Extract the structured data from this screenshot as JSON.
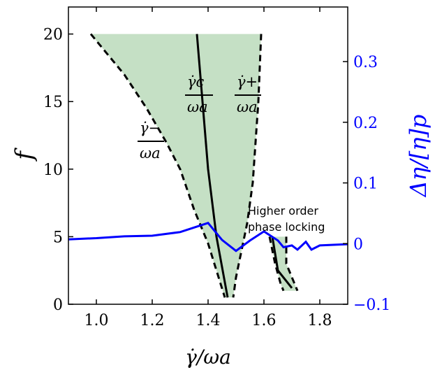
{
  "chart_data": {
    "type": "line",
    "xlabel": "γ̇/ωa",
    "ylabel": "f",
    "y2label": "Δη/[η]p",
    "xlim": [
      0.9,
      1.9
    ],
    "ylim": [
      0,
      22
    ],
    "y2lim": [
      -0.1,
      0.39
    ],
    "x_ticks": [
      1.0,
      1.2,
      1.4,
      1.6,
      1.8
    ],
    "x_tick_labels": [
      "1.0",
      "1.2",
      "1.4",
      "1.6",
      "1.8"
    ],
    "y_ticks": [
      0,
      5,
      10,
      15,
      20
    ],
    "y_tick_labels": [
      "0",
      "5",
      "10",
      "15",
      "20"
    ],
    "y2_ticks": [
      -0.1,
      0.0,
      0.1,
      0.2,
      0.3
    ],
    "y2_tick_labels": [
      "−0.1",
      "0",
      "0.1",
      "0.2",
      "0.3"
    ],
    "grid": false,
    "colors": {
      "shade": "#c5e0c5",
      "boundary": "#000000",
      "center": "#000000",
      "delta_eta": "#0000ff",
      "right_axis": "#0000ff"
    },
    "regions": [
      {
        "lower_boundary": [
          [
            0.98,
            20
          ],
          [
            1.1,
            17
          ],
          [
            1.18,
            14.5
          ],
          [
            1.25,
            12
          ],
          [
            1.3,
            10
          ],
          [
            1.35,
            7
          ],
          [
            1.4,
            4.5
          ],
          [
            1.43,
            2.5
          ],
          [
            1.46,
            0.5
          ]
        ],
        "upper_boundary": [
          [
            1.59,
            20
          ],
          [
            1.58,
            15
          ],
          [
            1.56,
            9
          ],
          [
            1.54,
            6
          ],
          [
            1.52,
            4
          ],
          [
            1.5,
            2
          ],
          [
            1.49,
            0.5
          ]
        ],
        "center_line": [
          [
            1.36,
            20
          ],
          [
            1.4,
            10
          ],
          [
            1.43,
            5
          ],
          [
            1.47,
            0.5
          ]
        ]
      },
      {
        "lower_boundary": [
          [
            1.62,
            5
          ],
          [
            1.64,
            3
          ],
          [
            1.66,
            1.5
          ],
          [
            1.67,
            1
          ]
        ],
        "upper_boundary": [
          [
            1.68,
            5
          ],
          [
            1.68,
            3
          ],
          [
            1.7,
            2
          ],
          [
            1.72,
            1
          ]
        ],
        "center_line": [
          [
            1.63,
            5
          ],
          [
            1.65,
            2.5
          ],
          [
            1.7,
            1.2
          ]
        ]
      }
    ],
    "series": [
      {
        "x": [
          0.9,
          1.0,
          1.1,
          1.2,
          1.3,
          1.4,
          1.45,
          1.5,
          1.55,
          1.6,
          1.65,
          1.67,
          1.7,
          1.72,
          1.75,
          1.77,
          1.8,
          1.9
        ],
        "y": [
          0.007,
          0.009,
          0.012,
          0.013,
          0.019,
          0.034,
          0.006,
          -0.012,
          0.005,
          0.02,
          0.005,
          -0.006,
          -0.003,
          -0.01,
          0.003,
          -0.01,
          -0.003,
          -0.001
        ]
      }
    ],
    "annotations": {
      "higher_order_line1": "Higher order",
      "higher_order_line2": "phase locking",
      "gamma_c_num": "γ̇c",
      "gamma_plus_num": "γ̇+",
      "gamma_minus_num": "γ̇−",
      "omega_den": "ωa"
    }
  }
}
